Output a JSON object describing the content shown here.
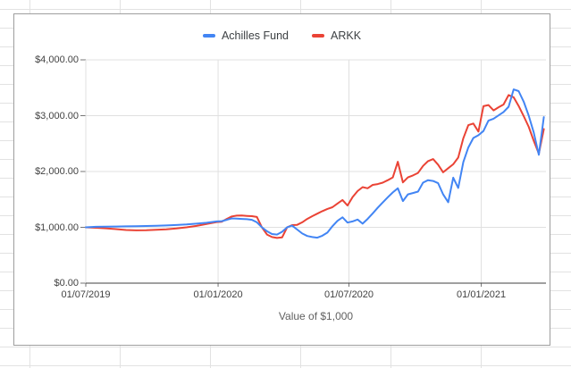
{
  "colors": {
    "series_blue": "#4285f4",
    "series_red": "#ea4335",
    "plot_gridline": "#e0e0e0",
    "axis_line": "#424242",
    "tick_mark": "#757575",
    "axis_label_text": "#424242",
    "axis_title_text": "#616161",
    "legend_text": "#3c4043",
    "chart_border": "#9e9e9e",
    "sheet_gridline": "#e2e2e2",
    "background": "#ffffff"
  },
  "chart_data": {
    "type": "line",
    "xlabel": "Value of $1,000",
    "legend_position": "top",
    "grid": true,
    "ylim": [
      0,
      4000
    ],
    "y_ticks": [
      {
        "value": 0,
        "label": "$0.00"
      },
      {
        "value": 1000,
        "label": "$1,000.00"
      },
      {
        "value": 2000,
        "label": "$2,000.00"
      },
      {
        "value": 3000,
        "label": "$3,000.00"
      },
      {
        "value": 4000,
        "label": "$4,000.00"
      }
    ],
    "x_ticks": [
      "01/07/2019",
      "01/01/2020",
      "01/07/2020",
      "01/01/2021"
    ],
    "x_domain": [
      "01/07/2019",
      "01/04/2021"
    ],
    "dates": [
      "01/07/2019",
      "15/07/2019",
      "29/07/2019",
      "12/08/2019",
      "26/08/2019",
      "09/09/2019",
      "23/09/2019",
      "07/10/2019",
      "21/10/2019",
      "04/11/2019",
      "18/11/2019",
      "02/12/2019",
      "16/12/2019",
      "30/12/2019",
      "06/01/2020",
      "13/01/2020",
      "20/01/2020",
      "27/01/2020",
      "03/02/2020",
      "10/02/2020",
      "17/02/2020",
      "24/02/2020",
      "02/03/2020",
      "09/03/2020",
      "16/03/2020",
      "23/03/2020",
      "30/03/2020",
      "06/04/2020",
      "13/04/2020",
      "20/04/2020",
      "27/04/2020",
      "04/05/2020",
      "11/05/2020",
      "18/05/2020",
      "25/05/2020",
      "01/06/2020",
      "08/06/2020",
      "15/06/2020",
      "22/06/2020",
      "29/06/2020",
      "06/07/2020",
      "13/07/2020",
      "20/07/2020",
      "27/07/2020",
      "03/08/2020",
      "10/08/2020",
      "17/08/2020",
      "24/08/2020",
      "31/08/2020",
      "07/09/2020",
      "14/09/2020",
      "21/09/2020",
      "28/09/2020",
      "05/10/2020",
      "12/10/2020",
      "19/10/2020",
      "26/10/2020",
      "02/11/2020",
      "09/11/2020",
      "16/11/2020",
      "23/11/2020",
      "30/11/2020",
      "07/12/2020",
      "14/12/2020",
      "21/12/2020",
      "28/12/2020",
      "04/01/2021",
      "11/01/2021",
      "18/01/2021",
      "25/01/2021",
      "01/02/2021",
      "08/02/2021",
      "15/02/2021",
      "22/02/2021",
      "01/03/2021",
      "08/03/2021",
      "15/03/2021",
      "22/03/2021",
      "29/03/2021"
    ],
    "series": [
      {
        "name": "Achilles Fund",
        "color": "#4285f4",
        "values": [
          1000,
          1010,
          1012,
          1015,
          1018,
          1020,
          1024,
          1028,
          1034,
          1042,
          1052,
          1065,
          1082,
          1105,
          1110,
          1135,
          1160,
          1155,
          1150,
          1145,
          1135,
          1090,
          1000,
          930,
          880,
          870,
          920,
          1000,
          1030,
          960,
          890,
          845,
          825,
          815,
          850,
          905,
          1020,
          1115,
          1180,
          1085,
          1105,
          1140,
          1065,
          1150,
          1250,
          1350,
          1445,
          1540,
          1625,
          1700,
          1470,
          1590,
          1615,
          1640,
          1800,
          1845,
          1830,
          1790,
          1590,
          1450,
          1890,
          1705,
          2170,
          2430,
          2600,
          2650,
          2725,
          2910,
          2945,
          3005,
          3065,
          3160,
          3470,
          3440,
          3250,
          3000,
          2700,
          2300,
          2975
        ]
      },
      {
        "name": "ARKK",
        "color": "#ea4335",
        "values": [
          1000,
          992,
          982,
          968,
          952,
          945,
          948,
          955,
          965,
          980,
          1000,
          1025,
          1060,
          1095,
          1100,
          1150,
          1195,
          1210,
          1212,
          1205,
          1200,
          1185,
          1000,
          870,
          825,
          810,
          820,
          1000,
          1040,
          1045,
          1090,
          1150,
          1200,
          1245,
          1290,
          1330,
          1360,
          1425,
          1490,
          1390,
          1540,
          1650,
          1720,
          1700,
          1760,
          1775,
          1800,
          1845,
          1895,
          2175,
          1805,
          1895,
          1930,
          1975,
          2100,
          2185,
          2222,
          2122,
          1985,
          2060,
          2130,
          2250,
          2595,
          2830,
          2860,
          2715,
          3170,
          3190,
          3095,
          3150,
          3200,
          3370,
          3330,
          3175,
          2990,
          2800,
          2550,
          2320,
          2760
        ]
      }
    ]
  }
}
